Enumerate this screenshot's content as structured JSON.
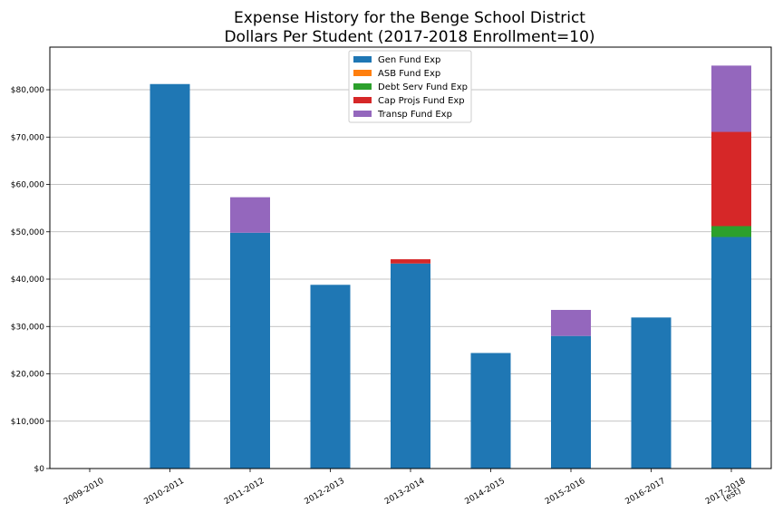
{
  "chart_data": {
    "type": "bar",
    "stacked": true,
    "title": "Expense History for the Benge School District",
    "subtitle": "Dollars Per Student (2017-2018 Enrollment=10)",
    "xlabel": "",
    "ylabel": "",
    "categories": [
      "2009-2010",
      "2010-2011",
      "2011-2012",
      "2012-2013",
      "2013-2014",
      "2014-2015",
      "2015-2016",
      "2016-2017",
      "2017-2018\n(est)"
    ],
    "ylim": [
      0,
      89000
    ],
    "yticks": [
      0,
      10000,
      20000,
      30000,
      40000,
      50000,
      60000,
      70000,
      80000
    ],
    "ytick_labels": [
      "$0",
      "$10,000",
      "$20,000",
      "$30,000",
      "$40,000",
      "$50,000",
      "$60,000",
      "$70,000",
      "$80,000"
    ],
    "grid": "horizontal",
    "legend_position": "top-center",
    "series": [
      {
        "name": "Gen Fund Exp",
        "color": "#1f77b4",
        "values": [
          0,
          81200,
          49800,
          38800,
          43300,
          24400,
          28000,
          31900,
          48900
        ]
      },
      {
        "name": "ASB Fund Exp",
        "color": "#ff7f0e",
        "values": [
          0,
          0,
          0,
          0,
          0,
          0,
          0,
          0,
          0
        ]
      },
      {
        "name": "Debt Serv Fund Exp",
        "color": "#2ca02c",
        "values": [
          0,
          0,
          0,
          0,
          0,
          0,
          0,
          0,
          2300
        ]
      },
      {
        "name": "Cap Projs Fund Exp",
        "color": "#d62728",
        "values": [
          0,
          0,
          0,
          0,
          900,
          0,
          0,
          0,
          19900
        ]
      },
      {
        "name": "Transp Fund Exp",
        "color": "#9467bd",
        "values": [
          0,
          0,
          7500,
          0,
          0,
          0,
          5500,
          0,
          14000
        ]
      }
    ]
  }
}
